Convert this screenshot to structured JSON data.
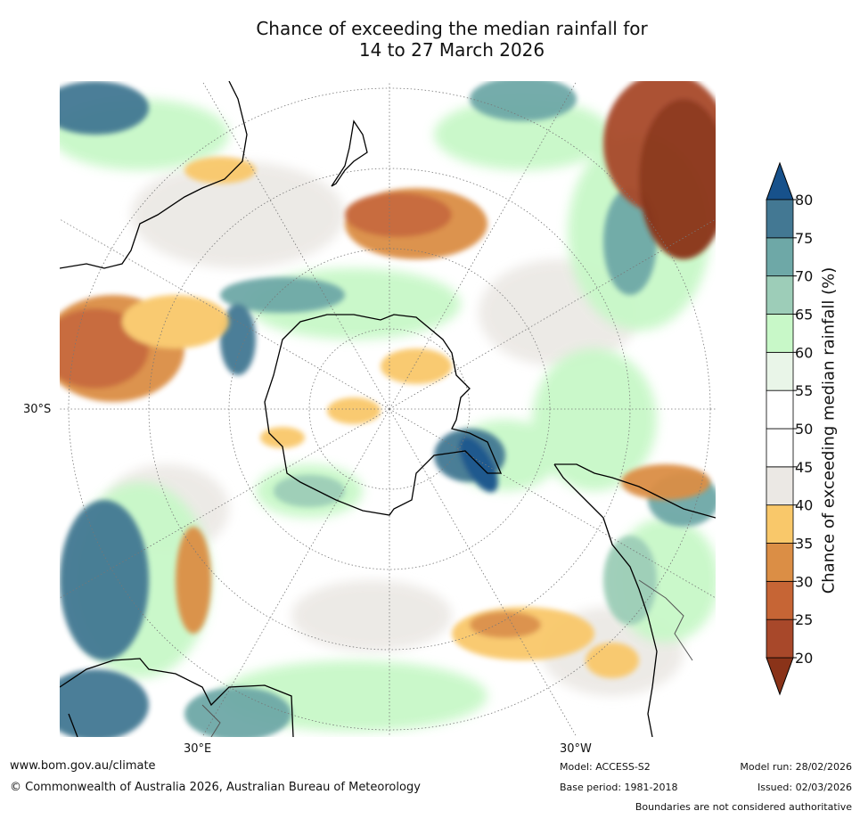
{
  "title_line1": "Chance of exceeding the median rainfall for",
  "title_line2": "14 to 27 March 2026",
  "axis_labels": {
    "lat_30s": "30°S",
    "lon_30e": "30°E",
    "lon_30w": "30°W"
  },
  "colorbar": {
    "label": "Chance of exceeding median rainfall (%)",
    "ticks": [
      "20",
      "25",
      "30",
      "35",
      "40",
      "45",
      "50",
      "55",
      "60",
      "65",
      "70",
      "75",
      "80"
    ],
    "colors": [
      "#8a3319",
      "#a8482a",
      "#c66535",
      "#db8e45",
      "#f9c86a",
      "#ebe8e4",
      "#ffffff",
      "#ffffff",
      "#e9f5e8",
      "#c8f8c8",
      "#9dcdb8",
      "#6ea8a7",
      "#437893",
      "#17518b"
    ]
  },
  "footer": {
    "website": "www.bom.gov.au/climate",
    "copyright": "© Commonwealth of Australia 2026, Australian Bureau of Meteorology",
    "model": "Model: ACCESS-S2",
    "base_period": "Base period: 1981-2018",
    "model_run": "Model run: 28/02/2026",
    "issued": "Issued: 02/03/2026",
    "disclaimer": "Boundaries are not considered authoritative"
  }
}
